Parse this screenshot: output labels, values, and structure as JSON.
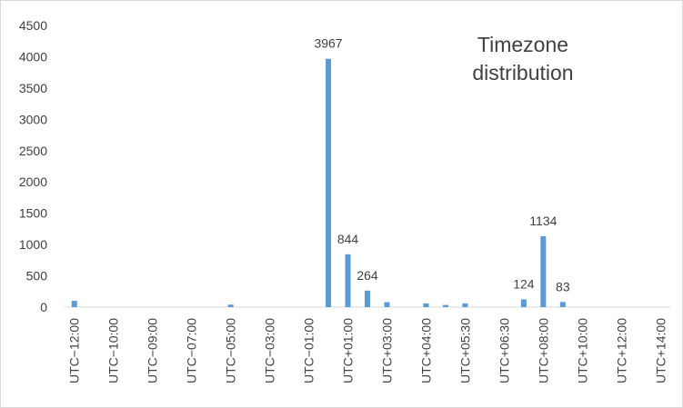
{
  "chart_data": {
    "type": "bar",
    "title": "Timezone distribution",
    "categories": [
      "UTC−12:00",
      null,
      "UTC−10:00",
      null,
      "UTC−09:00",
      null,
      "UTC−07:00",
      null,
      "UTC−05:00",
      null,
      "UTC−03:00",
      null,
      "UTC−01:00",
      null,
      "UTC+01:00",
      null,
      "UTC+03:00",
      null,
      "UTC+04:00",
      null,
      "UTC+05:30",
      null,
      "UTC+06:30",
      null,
      "UTC+08:00",
      null,
      "UTC+10:00",
      null,
      "UTC+12:00",
      null,
      "UTC+14:00"
    ],
    "values": [
      100,
      0,
      0,
      0,
      0,
      0,
      0,
      0,
      40,
      0,
      0,
      0,
      0,
      3967,
      844,
      264,
      80,
      0,
      60,
      35,
      60,
      0,
      0,
      124,
      1134,
      83,
      0,
      0,
      0,
      0,
      0
    ],
    "value_labels": [
      null,
      null,
      null,
      null,
      null,
      null,
      null,
      null,
      null,
      null,
      null,
      null,
      null,
      3967,
      844,
      264,
      null,
      null,
      null,
      null,
      null,
      null,
      null,
      124,
      1134,
      83,
      null,
      null,
      null,
      null,
      null
    ],
    "color": "#5b9bd5",
    "ylim": [
      0,
      4500
    ],
    "yticks": [
      0,
      500,
      1000,
      1500,
      2000,
      2500,
      3000,
      3500,
      4000,
      4500
    ],
    "grid": false
  }
}
